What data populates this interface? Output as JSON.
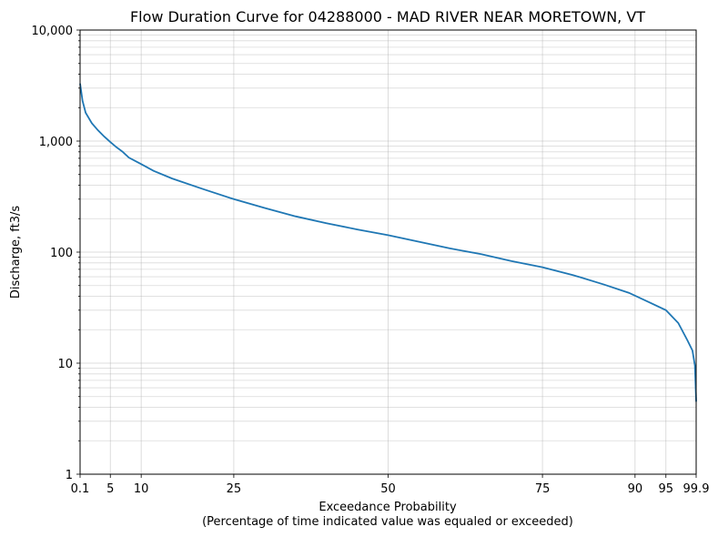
{
  "chart_data": {
    "type": "line",
    "title": "Flow Duration Curve for 04288000 - MAD RIVER NEAR MORETOWN, VT",
    "xlabel": "Exceedance Probability",
    "xlabel_note": "(Percentage of time indicated value was equaled or exceeded)",
    "ylabel": "Discharge, ft3/s",
    "xlim": [
      0.1,
      99.9
    ],
    "ylim": [
      1,
      10000
    ],
    "y_scale": "log",
    "grid": true,
    "line_color": "#1f77b4",
    "x_ticks": [
      0.1,
      5,
      10,
      25,
      50,
      75,
      90,
      95,
      99.9
    ],
    "x_tick_labels": [
      "0.1",
      "5",
      "10",
      "25",
      "50",
      "75",
      "90",
      "95",
      "99.9"
    ],
    "y_ticks": [
      1,
      10,
      100,
      1000,
      10000
    ],
    "y_tick_labels": [
      "1",
      "10",
      "100",
      "1,000",
      "10,000"
    ],
    "series": [
      {
        "x": [
          0.1,
          0.5,
          1,
          2,
          3,
          4,
          5,
          6,
          7,
          8,
          10,
          12,
          15,
          20,
          25,
          30,
          35,
          40,
          45,
          50,
          55,
          60,
          65,
          70,
          75,
          80,
          85,
          89,
          92,
          95,
          97,
          98.5,
          99.3,
          99.7,
          99.9
        ],
        "y": [
          3300,
          2300,
          1800,
          1450,
          1250,
          1100,
          980,
          880,
          800,
          710,
          620,
          540,
          460,
          370,
          300,
          250,
          210,
          182,
          160,
          142,
          124,
          108,
          96,
          83,
          73,
          62,
          51,
          43,
          36,
          30,
          23,
          16,
          13,
          9.5,
          4.5
        ]
      }
    ]
  }
}
